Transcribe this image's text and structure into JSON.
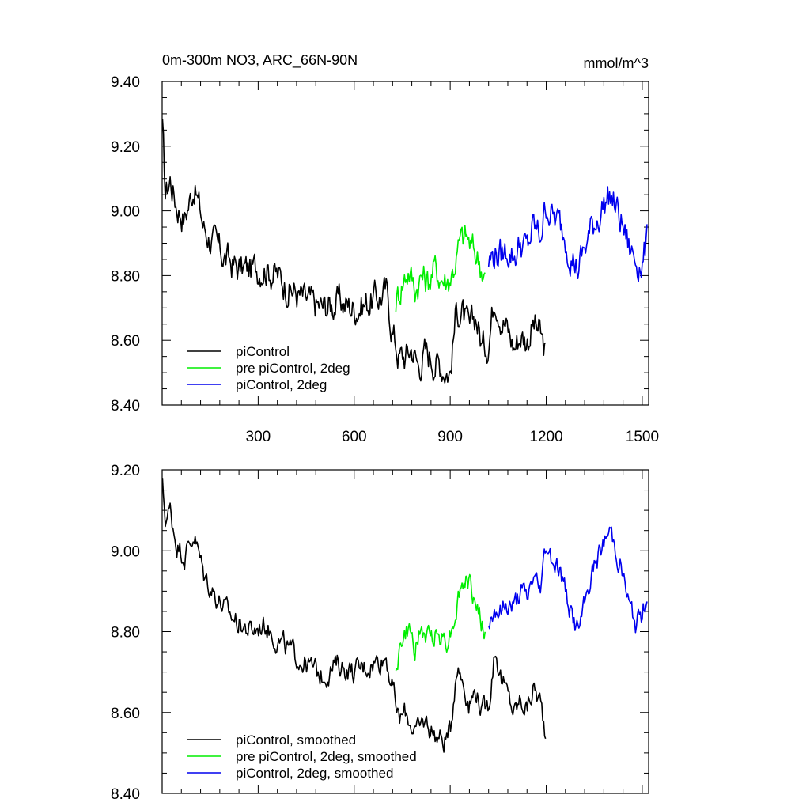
{
  "chart_data": [
    {
      "type": "line",
      "title": "0m-300m NO3, ARC_66N-90N",
      "units": "mmol/m^3",
      "xlim": [
        0,
        1520
      ],
      "ylim": [
        8.4,
        9.4
      ],
      "xticks": [
        300,
        600,
        900,
        1200,
        1500
      ],
      "xtick_labels": [
        "300",
        "600",
        "900",
        "1200",
        "1500"
      ],
      "yticks": [
        8.4,
        8.6,
        8.8,
        9.0,
        9.2,
        9.4
      ],
      "ytick_labels": [
        "8.40",
        "8.60",
        "8.80",
        "9.00",
        "9.20",
        "9.40"
      ],
      "grid": false,
      "legend_position": "bottom-left",
      "series": [
        {
          "name": "piControl",
          "color": "#000000",
          "x": [
            1,
            10,
            25,
            45,
            70,
            100,
            130,
            160,
            200,
            240,
            280,
            320,
            360,
            400,
            450,
            500,
            550,
            600,
            650,
            700,
            720,
            740,
            760,
            780,
            800,
            820,
            840,
            860,
            880,
            900,
            920,
            940,
            960,
            980,
            1000,
            1020,
            1040,
            1060,
            1080,
            1100,
            1120,
            1140,
            1160,
            1180,
            1200
          ],
          "values": [
            9.25,
            9.05,
            9.1,
            9.02,
            8.98,
            9.08,
            8.95,
            8.9,
            8.85,
            8.82,
            8.82,
            8.83,
            8.8,
            8.76,
            8.72,
            8.7,
            8.72,
            8.7,
            8.72,
            8.75,
            8.63,
            8.55,
            8.55,
            8.58,
            8.52,
            8.56,
            8.55,
            8.53,
            8.52,
            8.5,
            8.7,
            8.68,
            8.62,
            8.68,
            8.58,
            8.6,
            8.75,
            8.68,
            8.63,
            8.58,
            8.62,
            8.6,
            8.65,
            8.62,
            8.55
          ]
        },
        {
          "name": "pre piControl, 2deg",
          "color": "#00ee00",
          "x": [
            730,
            750,
            770,
            790,
            810,
            830,
            850,
            870,
            890,
            910,
            930,
            950,
            970,
            990,
            1010
          ],
          "values": [
            8.72,
            8.78,
            8.82,
            8.76,
            8.8,
            8.78,
            8.82,
            8.8,
            8.78,
            8.82,
            8.9,
            8.92,
            8.88,
            8.85,
            8.8
          ]
        },
        {
          "name": "piControl, 2deg",
          "color": "#0000ee",
          "x": [
            1020,
            1040,
            1060,
            1080,
            1100,
            1120,
            1140,
            1160,
            1180,
            1200,
            1220,
            1240,
            1260,
            1280,
            1300,
            1320,
            1340,
            1360,
            1380,
            1400,
            1420,
            1440,
            1460,
            1480,
            1500,
            1515
          ],
          "values": [
            8.84,
            8.87,
            8.86,
            8.88,
            8.86,
            8.9,
            8.88,
            8.95,
            8.92,
            9.02,
            8.98,
            8.96,
            8.92,
            8.86,
            8.82,
            8.88,
            8.94,
            8.98,
            9.02,
            9.05,
            9.0,
            8.95,
            8.88,
            8.85,
            8.84,
            8.9
          ]
        }
      ]
    },
    {
      "type": "line",
      "xlim": [
        0,
        1520
      ],
      "ylim": [
        8.4,
        9.2
      ],
      "xticks": [
        300,
        600,
        900,
        1200,
        1500
      ],
      "yticks": [
        8.4,
        8.6,
        8.8,
        9.0,
        9.2
      ],
      "ytick_labels": [
        "8.40",
        "8.60",
        "8.80",
        "9.00",
        "9.20"
      ],
      "grid": false,
      "legend_position": "bottom-left",
      "series": [
        {
          "name": "piControl, smoothed",
          "color": "#000000",
          "x": [
            1,
            10,
            25,
            45,
            70,
            100,
            130,
            160,
            200,
            240,
            280,
            320,
            360,
            400,
            450,
            500,
            550,
            600,
            650,
            700,
            720,
            740,
            760,
            780,
            800,
            820,
            840,
            860,
            880,
            900,
            920,
            940,
            960,
            980,
            1000,
            1020,
            1040,
            1060,
            1080,
            1100,
            1120,
            1140,
            1160,
            1180,
            1200
          ],
          "values": [
            9.16,
            9.08,
            9.1,
            9.02,
            8.99,
            9.04,
            8.94,
            8.9,
            8.85,
            8.82,
            8.8,
            8.82,
            8.78,
            8.75,
            8.72,
            8.69,
            8.72,
            8.7,
            8.72,
            8.74,
            8.66,
            8.58,
            8.6,
            8.57,
            8.55,
            8.58,
            8.56,
            8.54,
            8.53,
            8.55,
            8.72,
            8.68,
            8.62,
            8.66,
            8.6,
            8.62,
            8.76,
            8.68,
            8.64,
            8.6,
            8.63,
            8.61,
            8.66,
            8.63,
            8.54
          ]
        },
        {
          "name": "pre piControl, 2deg, smoothed",
          "color": "#00ee00",
          "x": [
            730,
            750,
            770,
            790,
            810,
            830,
            850,
            870,
            890,
            910,
            930,
            950,
            970,
            990,
            1010
          ],
          "values": [
            8.72,
            8.78,
            8.8,
            8.76,
            8.8,
            8.78,
            8.8,
            8.79,
            8.78,
            8.82,
            8.9,
            8.93,
            8.89,
            8.85,
            8.78
          ]
        },
        {
          "name": "piControl, 2deg, smoothed",
          "color": "#0000ee",
          "x": [
            1020,
            1040,
            1060,
            1080,
            1100,
            1120,
            1140,
            1160,
            1180,
            1200,
            1220,
            1240,
            1260,
            1280,
            1300,
            1320,
            1340,
            1360,
            1380,
            1400,
            1420,
            1440,
            1460,
            1480,
            1500,
            1515
          ],
          "values": [
            8.82,
            8.86,
            8.85,
            8.87,
            8.86,
            8.9,
            8.88,
            8.94,
            8.9,
            9.02,
            8.98,
            8.96,
            8.9,
            8.84,
            8.8,
            8.86,
            8.94,
            8.98,
            9.02,
            9.05,
            9.0,
            8.94,
            8.86,
            8.82,
            8.84,
            8.9
          ]
        }
      ]
    }
  ]
}
